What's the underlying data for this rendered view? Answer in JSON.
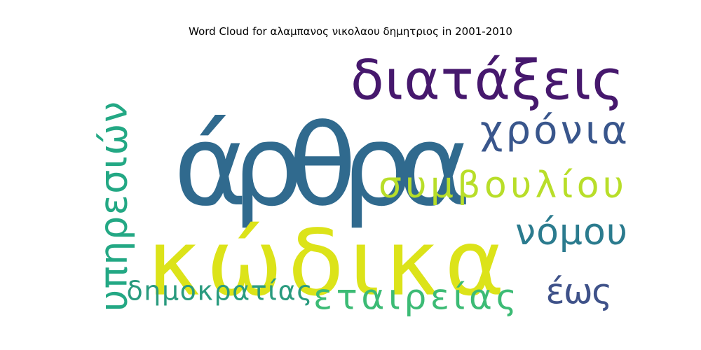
{
  "chart_data": {
    "type": "wordcloud",
    "title": "Word Cloud for αλαμπανος νικολαου δημητριος in 2001-2010",
    "words": [
      {
        "text": "άρθρα",
        "color": "#306a8e"
      },
      {
        "text": "κώδικα",
        "color": "#dce319"
      },
      {
        "text": "διατάξεις",
        "color": "#46186d"
      },
      {
        "text": "χρόνια",
        "color": "#39568c"
      },
      {
        "text": "συμβουλίου",
        "color": "#b8de29"
      },
      {
        "text": "υπηρεσιών",
        "color": "#23a884"
      },
      {
        "text": "νόμου",
        "color": "#2b7b8e"
      },
      {
        "text": "δημοκρατίας",
        "color": "#2a9b7f"
      },
      {
        "text": "εταιρείας",
        "color": "#3cbb75"
      },
      {
        "text": "έως",
        "color": "#3f5289"
      }
    ]
  }
}
